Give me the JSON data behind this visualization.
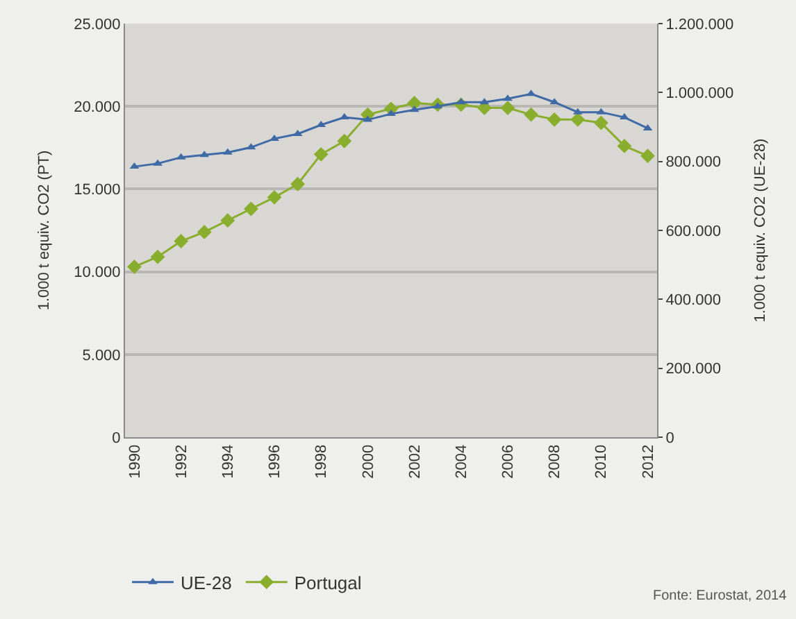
{
  "chart_data": {
    "type": "line",
    "ylabel": "1.000 t equiv. CO2 (PT)",
    "y2label": "1.000 t equiv. CO2 (UE-28)",
    "x": [
      1990,
      1991,
      1992,
      1993,
      1994,
      1995,
      1996,
      1997,
      1998,
      1999,
      2000,
      2001,
      2002,
      2003,
      2004,
      2005,
      2006,
      2007,
      2008,
      2009,
      2010,
      2011,
      2012
    ],
    "series": [
      {
        "name": "UE-28",
        "color": "#3f6aa6",
        "axis": "y2",
        "marker": "triangle",
        "values": [
          785000,
          794000,
          812000,
          819000,
          826000,
          841000,
          866000,
          880000,
          906000,
          928000,
          921000,
          938000,
          950000,
          960000,
          972000,
          972000,
          982000,
          996000,
          972000,
          943000,
          943000,
          928000,
          896000
        ]
      },
      {
        "name": "Portugal",
        "color": "#89ad2c",
        "marker": "diamond",
        "values": [
          10300,
          10900,
          11850,
          12400,
          13100,
          13800,
          14500,
          15300,
          17100,
          17900,
          19500,
          19850,
          20200,
          20100,
          20100,
          19900,
          19900,
          19500,
          19200,
          19200,
          19000,
          17600,
          17000
        ]
      }
    ],
    "xlim": [
      1989.6,
      2012.4
    ],
    "xticks": [
      1990,
      1992,
      1994,
      1996,
      1998,
      2000,
      2002,
      2004,
      2006,
      2008,
      2010,
      2012
    ],
    "ylim": [
      0,
      25000
    ],
    "yticks": [
      0,
      {
        "value": 5000,
        "label": "5.000"
      },
      {
        "value": 10000,
        "label": "10.000"
      },
      {
        "value": 15000,
        "label": "15.000"
      },
      {
        "value": 20000,
        "label": "20.000"
      },
      {
        "value": 25000,
        "label": "25.000"
      }
    ],
    "y2lim": [
      0,
      1200000
    ],
    "y2ticks": [
      0,
      {
        "value": 200000,
        "label": "200.000"
      },
      {
        "value": 400000,
        "label": "400.000"
      },
      {
        "value": 600000,
        "label": "600.000"
      },
      {
        "value": 800000,
        "label": "800.000"
      },
      {
        "value": 1000000,
        "label": "1.000.000"
      },
      {
        "value": 1200000,
        "label": "1.200.000"
      }
    ],
    "grid": "y",
    "legend": "bottom left",
    "line_style": "solid",
    "annotations": [
      "Fonte: Eurostat, 2014"
    ]
  }
}
